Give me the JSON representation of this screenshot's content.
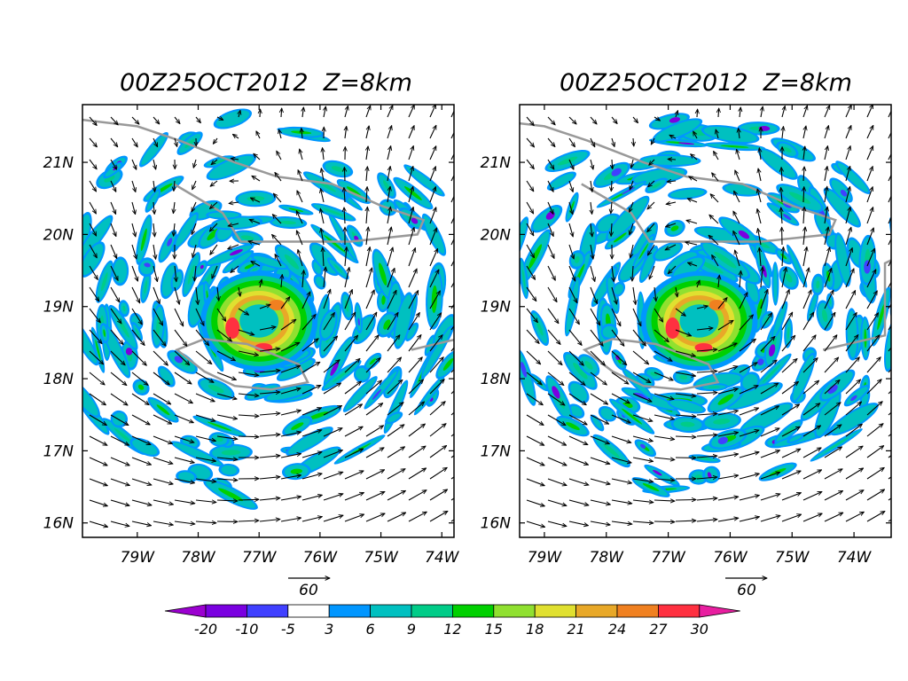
{
  "panels": [
    {
      "id": "left",
      "title": "00Z25OCT2012  Z=8km",
      "lat_labels": [
        "16N",
        "17N",
        "18N",
        "19N",
        "20N",
        "21N"
      ],
      "lat_values": [
        16,
        17,
        18,
        19,
        20,
        21
      ],
      "lon_labels": [
        "79W",
        "78W",
        "77W",
        "76W",
        "75W",
        "74W"
      ],
      "lon_values": [
        -79,
        -78,
        -77,
        -76,
        -75,
        -74
      ],
      "extent": {
        "lon_min": -79.9,
        "lon_max": -73.8,
        "lat_min": 15.8,
        "lat_max": 21.8
      },
      "ref_vector_label": "60",
      "storm_center": {
        "lon": -77.0,
        "lat": 18.8
      }
    },
    {
      "id": "right",
      "title": "00Z25OCT2012  Z=8km",
      "lat_labels": [
        "16N",
        "17N",
        "18N",
        "19N",
        "20N",
        "21N"
      ],
      "lat_values": [
        16,
        17,
        18,
        19,
        20,
        21
      ],
      "lon_labels": [
        "79W",
        "78W",
        "77W",
        "76W",
        "75W",
        "74W"
      ],
      "lon_values": [
        -79,
        -78,
        -77,
        -76,
        -75,
        -74
      ],
      "extent": {
        "lon_min": -79.4,
        "lon_max": -73.4,
        "lat_min": 15.8,
        "lat_max": 21.8
      },
      "ref_vector_label": "60",
      "storm_center": {
        "lon": -76.5,
        "lat": 18.8
      }
    }
  ],
  "colorbar": {
    "labels": [
      "-20",
      "-10",
      "-5",
      "3",
      "6",
      "9",
      "12",
      "15",
      "18",
      "21",
      "24",
      "27",
      "30"
    ],
    "colors": [
      "#9b00d0",
      "#7a00e0",
      "#4040ff",
      "#ffffff",
      "#0096ff",
      "#00c0c0",
      "#00cc88",
      "#00d000",
      "#90e030",
      "#e0e030",
      "#e8a828",
      "#f08020",
      "#ff3040",
      "#e81ea0"
    ]
  }
}
